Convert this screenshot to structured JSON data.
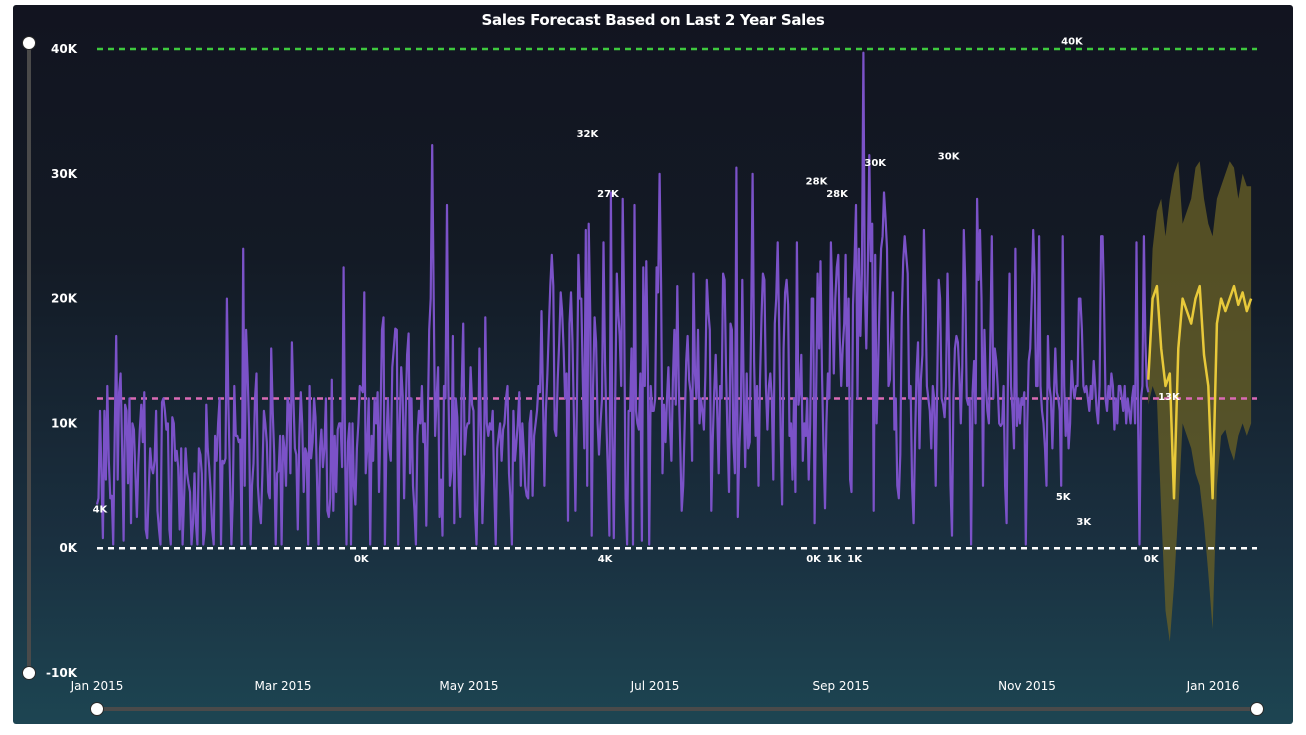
{
  "colors": {
    "actual": "#7b52c8",
    "forecast": "#e8c93a",
    "band": "#6b6226",
    "max_line": "#3ec93e",
    "avg_line": "#d96ab4",
    "zero_line": "#ffffff"
  },
  "chart_data": {
    "type": "line",
    "title": "Sales Forecast Based on Last 2 Year Sales",
    "xlabel": "",
    "ylabel": "",
    "ylim": [
      -10000,
      40000
    ],
    "yticks": [
      "40K",
      "30K",
      "20K",
      "10K",
      "0K",
      "-10K"
    ],
    "xticks": [
      "Jan 2015",
      "Mar 2015",
      "May 2015",
      "Jul 2015",
      "Sep 2015",
      "Nov 2015",
      "Jan 2016"
    ],
    "x_start": "2015-01-01",
    "x_end": "2016-01-31",
    "reference_lines": {
      "max": 40000,
      "average": 12000,
      "zero": 0
    },
    "series": [
      {
        "values": [
          3500,
          4000,
          11000,
          6000,
          800,
          11000,
          5500,
          13000,
          7000,
          4000,
          4200,
          300,
          9000,
          17000,
          5500,
          12500,
          14000,
          8000,
          600,
          11500,
          11000,
          5200,
          12000,
          2000,
          10000,
          9500,
          6000,
          2500,
          6700,
          9500,
          11500,
          8500,
          12500,
          1500,
          800,
          4500,
          8000,
          6500,
          6000,
          7000,
          11000,
          3000,
          1500,
          300,
          11700,
          12000,
          11000,
          9500,
          10000,
          1500,
          300,
          10500,
          10000,
          7000,
          7800,
          6500,
          1500,
          8000,
          300,
          4000,
          8000,
          6000,
          5200,
          4500,
          300,
          2000,
          6000,
          2000,
          300,
          8000,
          7500,
          6000,
          300,
          1500,
          11500,
          8000,
          6500,
          4500,
          1500,
          300,
          9000,
          7000,
          10000,
          12000,
          300,
          7000,
          6800,
          7200,
          20000,
          11500,
          6000,
          300,
          4000,
          13000,
          9000,
          9000,
          8500,
          8700,
          300,
          24000,
          5000,
          17500,
          14000,
          9500,
          300,
          5000,
          6800,
          12000,
          14000,
          5000,
          3000,
          2000,
          6000,
          11000,
          10000,
          8500,
          4500,
          4000,
          16000,
          11000,
          7500,
          300,
          6000,
          6200,
          9000,
          300,
          9000,
          8000,
          5000,
          12000,
          11500,
          6000,
          16500,
          12000,
          8000,
          7500,
          1500,
          8800,
          12500,
          10000,
          4500,
          8000,
          7600,
          300,
          13000,
          7200,
          8500,
          12000,
          10500,
          5500,
          300,
          8000,
          9500,
          6500,
          8000,
          12000,
          3000,
          2500,
          4000,
          13500,
          3000,
          9000,
          4500,
          9500,
          10000,
          10000,
          6500,
          22500,
          7500,
          300,
          8500,
          10000,
          300,
          10000,
          5000,
          3500,
          8000,
          10000,
          13000,
          12800,
          12500,
          20500,
          6000,
          8000,
          12000,
          300,
          9000,
          7000,
          12000,
          10000,
          12500,
          4500,
          10500,
          17500,
          18500,
          300,
          8500,
          12000,
          8000,
          7000,
          14500,
          16000,
          17600,
          17500,
          300,
          10000,
          14500,
          12200,
          4000,
          10500,
          15500,
          17200,
          6000,
          12000,
          5000,
          3000,
          300,
          9000,
          11000,
          10000,
          13000,
          8500,
          10000,
          1800,
          10000,
          17500,
          20000,
          32300,
          20000,
          9000,
          12000,
          14500,
          2500,
          5500,
          1000,
          13000,
          12000,
          27500,
          13000,
          5000,
          6200,
          17000,
          2000,
          12000,
          10500,
          5000,
          2500,
          13000,
          18000,
          7500,
          9500,
          10000,
          10000,
          14500,
          11500,
          11000,
          3000,
          300,
          6500,
          16000,
          9500,
          2000,
          6000,
          18500,
          10000,
          9000,
          10000,
          9500,
          11000,
          5000,
          300,
          8000,
          9000,
          10000,
          7000,
          9500,
          10000,
          12000,
          13000,
          6000,
          4000,
          300,
          11000,
          7000,
          8500,
          10000,
          12500,
          5000,
          10000,
          8000,
          5000,
          4200,
          4000,
          10000,
          11000,
          4200,
          9000,
          10000,
          11000,
          13000,
          12500,
          19000,
          12500,
          5000,
          11000,
          14000,
          17500,
          21000,
          23500,
          21000,
          9500,
          9000,
          13500,
          16500,
          20500,
          19000,
          16000,
          12000,
          14000,
          2200,
          18000,
          20500,
          16500,
          10500,
          3000,
          11500,
          23500,
          20000,
          20000,
          13500,
          8000,
          25500,
          5000,
          26000,
          19000,
          1000,
          13000,
          18500,
          16500,
          10000,
          7500,
          10000,
          12000,
          24500,
          15000,
          10000,
          6000,
          1000,
          28500,
          9000,
          800,
          12500,
          22000,
          19000,
          17000,
          13000,
          28000,
          19500,
          4000,
          300,
          11000,
          11000,
          16000,
          300,
          27500,
          11000,
          10000,
          9500,
          14000,
          600,
          22500,
          13000,
          23000,
          15000,
          300,
          13000,
          11000,
          11000,
          12000,
          22500,
          20500,
          30000,
          21000,
          6000,
          11500,
          8500,
          12000,
          14500,
          10000,
          7000,
          13500,
          17500,
          11500,
          21000,
          13000,
          8000,
          3000,
          5000,
          10000,
          15000,
          17000,
          13500,
          12500,
          7000,
          22000,
          14000,
          12000,
          17500,
          10000,
          12000,
          11000,
          9500,
          14000,
          21500,
          19000,
          17500,
          3000,
          8500,
          12500,
          15500,
          11000,
          6000,
          13000,
          12000,
          22000,
          21500,
          14500,
          9000,
          4500,
          18000,
          17500,
          8500,
          6000,
          30500,
          2500,
          8000,
          11000,
          21500,
          12000,
          6500,
          14000,
          8000,
          8500,
          18000,
          30000,
          15000,
          9000,
          13000,
          5000,
          13500,
          18500,
          22000,
          21500,
          13000,
          9500,
          13000,
          14000,
          12000,
          5500,
          18000,
          20000,
          24500,
          17500,
          9000,
          3500,
          16000,
          20500,
          21500,
          19500,
          9000,
          10000,
          5500,
          12000,
          4500,
          24500,
          11500,
          12500,
          15500,
          7000,
          10000,
          9000,
          12000,
          5500,
          10000,
          20000,
          20000,
          2000,
          12000,
          22000,
          16000,
          23000,
          14000,
          8000,
          3200,
          10000,
          14000,
          12000,
          24500,
          20000,
          14000,
          20000,
          22500,
          23500,
          17000,
          13000,
          16000,
          18000,
          23500,
          13000,
          20000,
          5500,
          4500,
          19500,
          23000,
          27500,
          12000,
          24000,
          17000,
          22000,
          39700,
          21000,
          16000,
          22500,
          31500,
          23000,
          26000,
          3000,
          23500,
          10000,
          14500,
          20000,
          24000,
          25000,
          28500,
          26500,
          24000,
          13000,
          13500,
          17500,
          20500,
          9500,
          12000,
          5000,
          4000,
          7500,
          18500,
          23000,
          25000,
          23500,
          22000,
          12000,
          13000,
          5000,
          2000,
          8500,
          14000,
          16500,
          8000,
          13500,
          15500,
          25500,
          20500,
          13000,
          12000,
          11000,
          8000,
          13000,
          12000,
          5000,
          13000,
          21500,
          20000,
          12000,
          11500,
          10500,
          13000,
          22000,
          16000,
          5000,
          1000,
          12000,
          16000,
          17000,
          16500,
          14000,
          10000,
          14500,
          25500,
          21500,
          12000,
          11500,
          12000,
          300,
          12500,
          15000,
          10000,
          28000,
          21500,
          25500,
          20000,
          5000,
          17500,
          13000,
          11000,
          10000,
          16500,
          25000,
          12000,
          16000,
          15000,
          13000,
          10000,
          9800,
          10000,
          13000,
          5000,
          2000,
          15000,
          22000,
          13000,
          11000,
          8000,
          24000,
          9800,
          12000,
          10000,
          12000,
          11500,
          12500,
          300,
          10000,
          15000,
          16000,
          20000,
          25500,
          22000,
          13000,
          13000,
          25000,
          13000,
          11000,
          10000,
          8000,
          5000,
          17000,
          13000,
          12000,
          8000,
          12000,
          16000,
          12500,
          12000,
          11000,
          5000,
          25000,
          13000,
          9000,
          12000,
          8000,
          10000,
          15000,
          13000,
          12000,
          13000,
          13000,
          20000,
          20000,
          17500,
          13000,
          12500,
          13000,
          12000,
          11000,
          13000,
          12000,
          15000,
          13000,
          11000,
          10000,
          13000,
          25000,
          25000,
          20000,
          12000,
          11000,
          13000,
          12000,
          14000,
          13000,
          9500,
          12000,
          10000,
          13000,
          13000,
          12000,
          11000,
          13000,
          10000,
          12000,
          11000,
          10000,
          12000,
          13000,
          10000,
          24500,
          11000,
          300,
          12000,
          13000,
          25000,
          16500,
          13000,
          12500
        ]
      }
    ],
    "forecast": {
      "x_start": "2015-12-25",
      "x_end": "2016-01-29",
      "values": [
        13500,
        20000,
        21000,
        16000,
        13000,
        14000,
        4000,
        16000,
        20000,
        19000,
        18000,
        20000,
        21000,
        15500,
        13000,
        4000,
        18000,
        20000,
        19000,
        20000,
        21000,
        19500,
        20500,
        19000,
        20000
      ],
      "upper": [
        15000,
        24000,
        27000,
        28000,
        25000,
        28000,
        30000,
        31000,
        26000,
        27000,
        28000,
        30500,
        31000,
        28000,
        26000,
        25000,
        28000,
        29000,
        30000,
        31000,
        30500,
        28000,
        30000,
        29000,
        29000
      ],
      "lower": [
        11500,
        13000,
        12000,
        3000,
        -5000,
        -7500,
        -3000,
        3000,
        10000,
        9000,
        8000,
        6000,
        5000,
        2000,
        -2000,
        -6500,
        5000,
        9000,
        9500,
        8000,
        7000,
        9000,
        10000,
        9000,
        10000
      ]
    },
    "data_labels": [
      {
        "text": "4K",
        "x": "2015-01-02",
        "y": 4000
      },
      {
        "text": "0K",
        "x": "2015-04-01",
        "y": 0
      },
      {
        "text": "32K",
        "x": "2015-06-17",
        "y": 32300
      },
      {
        "text": "27K",
        "x": "2015-06-24",
        "y": 27500
      },
      {
        "text": "4K",
        "x": "2015-06-23",
        "y": 0
      },
      {
        "text": "28K",
        "x": "2015-09-03",
        "y": 28500
      },
      {
        "text": "28K",
        "x": "2015-09-10",
        "y": 27500
      },
      {
        "text": "0K",
        "x": "2015-09-02",
        "y": 0
      },
      {
        "text": "1K",
        "x": "2015-09-09",
        "y": 0
      },
      {
        "text": "1K",
        "x": "2015-09-16",
        "y": 0
      },
      {
        "text": "30K",
        "x": "2015-09-23",
        "y": 30000
      },
      {
        "text": "30K",
        "x": "2015-10-18",
        "y": 30500
      },
      {
        "text": "40K",
        "x": "2015-11-29",
        "y": 39700
      },
      {
        "text": "5K",
        "x": "2015-11-26",
        "y": 5000
      },
      {
        "text": "3K",
        "x": "2015-12-03",
        "y": 3000
      },
      {
        "text": "0K",
        "x": "2015-12-26",
        "y": 0
      },
      {
        "text": "13K",
        "x": "2016-01-01",
        "y": 13000
      }
    ],
    "grid": false,
    "legend": "none"
  }
}
